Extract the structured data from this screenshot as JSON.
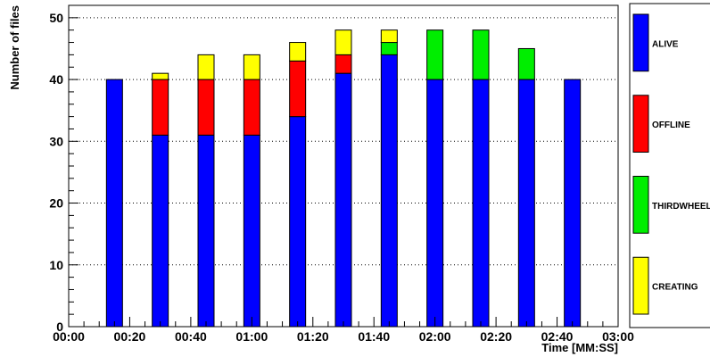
{
  "chart_data": {
    "type": "bar",
    "stacked": true,
    "title": "",
    "xlabel": "Time [MM:SS]",
    "ylabel": "Number of files",
    "x_unit": "seconds",
    "xlim": [
      0,
      180
    ],
    "ylim": [
      0,
      52
    ],
    "x_ticks": [
      {
        "value": 0,
        "label": "00:00"
      },
      {
        "value": 20,
        "label": "00:20"
      },
      {
        "value": 40,
        "label": "00:40"
      },
      {
        "value": 60,
        "label": "01:00"
      },
      {
        "value": 80,
        "label": "01:20"
      },
      {
        "value": 100,
        "label": "01:40"
      },
      {
        "value": 120,
        "label": "02:00"
      },
      {
        "value": 140,
        "label": "02:20"
      },
      {
        "value": 160,
        "label": "02:40"
      },
      {
        "value": 180,
        "label": "03:00"
      }
    ],
    "y_ticks": [
      {
        "value": 0,
        "label": "0"
      },
      {
        "value": 10,
        "label": "10"
      },
      {
        "value": 20,
        "label": "20"
      },
      {
        "value": 30,
        "label": "30"
      },
      {
        "value": 40,
        "label": "40"
      },
      {
        "value": 50,
        "label": "50"
      }
    ],
    "grid": "horizontal dotted",
    "legend_position": "right",
    "x": [
      15,
      30,
      45,
      60,
      75,
      90,
      105,
      120,
      135,
      150,
      165
    ],
    "series": [
      {
        "name": "ALIVE",
        "color": "#0000ff",
        "values": [
          40,
          31,
          31,
          31,
          34,
          41,
          44,
          40,
          40,
          40,
          40
        ]
      },
      {
        "name": "OFFLINE",
        "color": "#ff0000",
        "values": [
          0,
          9,
          9,
          9,
          9,
          3,
          0,
          0,
          0,
          0,
          0
        ]
      },
      {
        "name": "THIRDWHEEL",
        "color": "#00ee00",
        "values": [
          0,
          0,
          0,
          0,
          0,
          0,
          2,
          8,
          8,
          5,
          0
        ]
      },
      {
        "name": "CREATING",
        "color": "#ffff00",
        "values": [
          0,
          1,
          4,
          4,
          3,
          4,
          2,
          0,
          0,
          0,
          0
        ]
      }
    ]
  }
}
